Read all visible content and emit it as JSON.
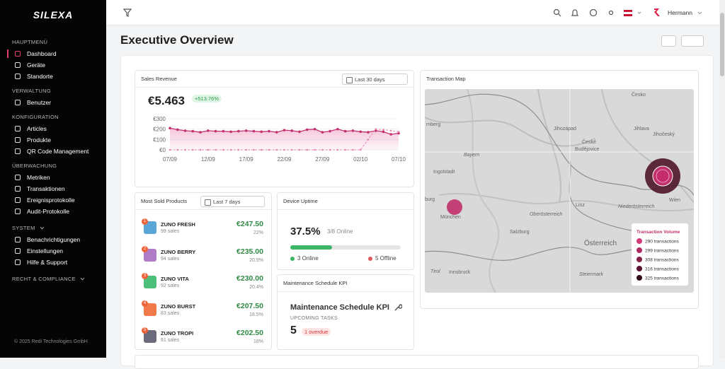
{
  "sidebar": {
    "logo": "SILEXA",
    "sections": [
      {
        "title": "HAUPTMENÜ",
        "items": [
          "Dashboard",
          "Geräte",
          "Standorte"
        ]
      },
      {
        "title": "VERWALTUNG",
        "items": [
          "Benutzer"
        ]
      },
      {
        "title": "KONFIGURATION",
        "items": [
          "Articles",
          "Produkte",
          "QR Code Management"
        ]
      },
      {
        "title": "ÜBERWACHUNG",
        "items": [
          "Metriken",
          "Transaktionen",
          "Ereignisprotokolle",
          "Audit-Protokolle"
        ]
      },
      {
        "title": "SYSTEM",
        "items": [
          "Benachrichtigungen",
          "Einstellungen",
          "Hilfe & Support"
        ]
      },
      {
        "title": "RECHT & COMPLIANCE"
      }
    ],
    "footer": "© 2025 Redi Technologies GmbH"
  },
  "topbar": {
    "user": "Hermann"
  },
  "page": {
    "title": "Executive Overview"
  },
  "sales_revenue": {
    "title": "Sales Revenue",
    "range": "Last 30 days",
    "total": "€5.463",
    "change": "+513.76%",
    "chart": {
      "type": "line",
      "categories": [
        "07/09",
        null,
        null,
        null,
        null,
        "12/09",
        null,
        null,
        null,
        null,
        "17/09",
        null,
        null,
        null,
        null,
        "22/09",
        null,
        null,
        null,
        null,
        "27/09",
        null,
        null,
        null,
        null,
        "02/10",
        null,
        null,
        null,
        null,
        "07/10"
      ],
      "series": [
        {
          "color": "#c2306f",
          "values": [
            210,
            195,
            185,
            180,
            170,
            185,
            180,
            180,
            175,
            180,
            185,
            180,
            175,
            180,
            170,
            190,
            185,
            175,
            195,
            200,
            170,
            180,
            200,
            180,
            185,
            175,
            170,
            185,
            175,
            150,
            160
          ]
        },
        {
          "color": "#e68ab3",
          "values": [
            0,
            0,
            0,
            0,
            0,
            0,
            0,
            0,
            0,
            0,
            0,
            0,
            0,
            0,
            0,
            0,
            0,
            0,
            0,
            0,
            0,
            0,
            0,
            0,
            0,
            0,
            100,
            200,
            195,
            185,
            175
          ]
        }
      ],
      "ylim": [
        0,
        300
      ],
      "yticks": [
        {
          "value": 0,
          "label": "€0"
        },
        {
          "value": 100,
          "label": "€100"
        },
        {
          "value": 200,
          "label": "€200"
        },
        {
          "value": 300,
          "label": "€300"
        }
      ],
      "grid": true
    }
  },
  "most_sold": {
    "title": "Most Sold Products",
    "range": "Last 7 days",
    "items": [
      {
        "rank": "1",
        "name": "ZUNO FRESH",
        "sales": "99 sales",
        "revenue": "€247.50",
        "share": "22%"
      },
      {
        "rank": "2",
        "name": "ZUNO BERRY",
        "sales": "94 sales",
        "revenue": "€235.00",
        "share": "20.9%"
      },
      {
        "rank": "3",
        "name": "ZUNO VITA",
        "sales": "92 sales",
        "revenue": "€230.00",
        "share": "20.4%"
      },
      {
        "rank": "4",
        "name": "ZUNO BURST",
        "sales": "83 sales",
        "revenue": "€207.50",
        "share": "18.5%"
      },
      {
        "rank": "5",
        "name": "ZUNO TROPI",
        "sales": "81 sales",
        "revenue": "€202.50",
        "share": "18%"
      }
    ]
  },
  "device_uptime": {
    "title": "Device Uptime",
    "uptime": {
      "value": 37.5,
      "label": "37.5%"
    },
    "online_ratio": "3/8 Online",
    "online": "3 Online",
    "offline": "5 Offline"
  },
  "maintenance": {
    "title": "Maintenance Schedule KPI",
    "heading": "Maintenance Schedule KPI",
    "label": "UPCOMING TASKS",
    "count": "5",
    "overdue": "1 overdue"
  },
  "transaction_map": {
    "title": "Transaction Map",
    "labels": [
      "Česko",
      "rnberg",
      "Jihozápad",
      "Jihlava",
      "Jihočeský",
      "České",
      "Budějovice",
      "Bayern",
      "Ingolstadt",
      "burg",
      "Linz",
      "Niederösterreich",
      "Wien",
      "Oberösterreich",
      "Salzburg",
      "Österreich",
      "Tirol",
      "Innsbruck",
      "Steiermark",
      "München"
    ],
    "legend": {
      "title": "Transaction Volume",
      "items": [
        {
          "label": "290 transactions",
          "color": "#d23a7a"
        },
        {
          "label": "299 transactions",
          "color": "#b02a62"
        },
        {
          "label": "308 transactions",
          "color": "#86204a"
        },
        {
          "label": "316 transactions",
          "color": "#5c1533"
        },
        {
          "label": "325 transactions",
          "color": "#360a1d"
        }
      ]
    }
  }
}
